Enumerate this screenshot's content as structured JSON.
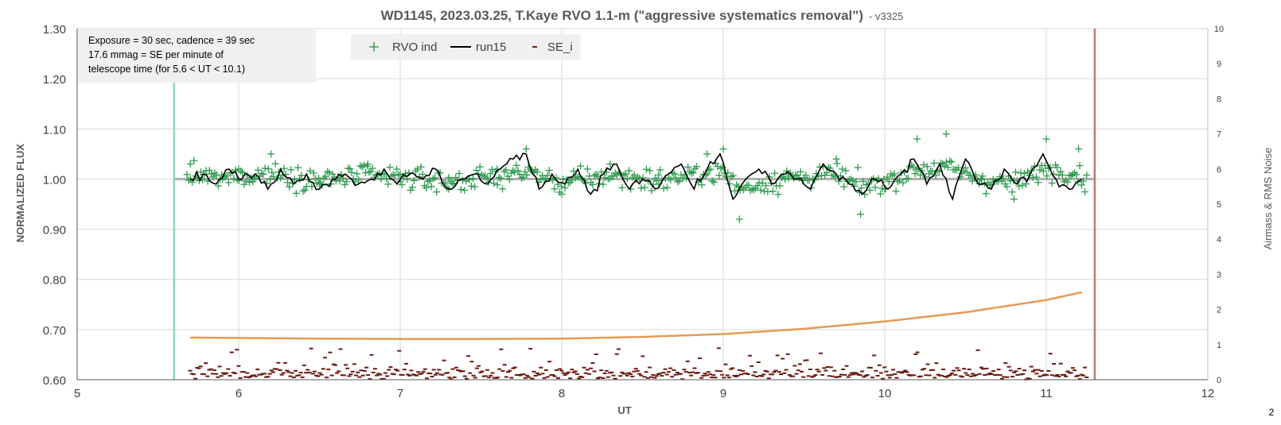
{
  "chart_data": {
    "type": "scatter",
    "title": "WD1145, 2023.03.25, T.Kaye RVO 1.1-m (\"aggressive systematics removal\")",
    "title_suffix": "- v3325",
    "xlabel": "UT",
    "ylabel": "NORMALIZED FLUX",
    "y2label": "Airmass & RMS Noise",
    "xlim": [
      5,
      12
    ],
    "ylim": [
      0.6,
      1.3
    ],
    "y2lim": [
      0,
      10
    ],
    "x_ticks": [
      "5",
      "6",
      "7",
      "8",
      "9",
      "10",
      "11",
      "12"
    ],
    "y_ticks": [
      "0.60",
      "0.70",
      "0.80",
      "0.90",
      "1.00",
      "1.10",
      "1.20",
      "1.30"
    ],
    "y2_ticks": [
      "0",
      "1",
      "2",
      "3",
      "4",
      "5",
      "6",
      "7",
      "8",
      "9",
      "10"
    ],
    "grid": true,
    "corner_mark": "2",
    "info_box": {
      "lines": [
        "Exposure = 30 sec, cadence = 39 sec",
        "17.6 mmag = SE per minute of",
        "telescope time  (for 5.6 < UT < 10.1)"
      ]
    },
    "legend": {
      "position": "top-left",
      "entries": [
        {
          "label": "RVO ind",
          "marker": "plus",
          "color": "#2e9b4e"
        },
        {
          "label": "run15",
          "marker": "line",
          "color": "#000000"
        },
        {
          "label": "SE_i",
          "marker": "dash",
          "color": "#6b1a10"
        }
      ]
    },
    "vertical_lines": [
      {
        "x": 5.6,
        "color": "#8fd4c0"
      },
      {
        "x": 11.3,
        "color": "#c07a7a"
      }
    ],
    "reference_line": {
      "y": 1.0,
      "color": "#b0b0b0"
    },
    "series": [
      {
        "name": "RVO ind",
        "style": "plus",
        "color": "#2e9b4e",
        "x_range": [
          5.68,
          11.25
        ],
        "n_points": 520,
        "baseline": 1.0,
        "scatter_sd": 0.018,
        "x_sample": [
          5.7,
          5.9,
          6.0,
          6.2,
          6.5,
          6.8,
          7.0,
          7.3,
          7.6,
          7.78,
          8.0,
          8.3,
          8.6,
          8.9,
          9.0,
          9.1,
          9.4,
          9.7,
          9.85,
          10.0,
          10.2,
          10.38,
          10.6,
          10.8,
          11.0,
          11.2
        ],
        "y_sample": [
          1.03,
          1.0,
          1.02,
          1.05,
          0.99,
          1.03,
          1.01,
          0.98,
          1.02,
          1.06,
          0.97,
          1.03,
          0.99,
          1.05,
          1.06,
          0.92,
          1.01,
          1.04,
          0.93,
          0.98,
          1.08,
          1.09,
          1.0,
          0.96,
          1.08,
          1.06
        ]
      },
      {
        "name": "run15",
        "style": "line",
        "color": "#000000",
        "x": [
          5.7,
          5.78,
          5.86,
          5.94,
          6.02,
          6.1,
          6.18,
          6.26,
          6.34,
          6.42,
          6.5,
          6.58,
          6.66,
          6.74,
          6.82,
          6.9,
          6.98,
          7.06,
          7.14,
          7.22,
          7.3,
          7.38,
          7.46,
          7.54,
          7.62,
          7.7,
          7.78,
          7.86,
          7.94,
          8.02,
          8.1,
          8.18,
          8.26,
          8.34,
          8.42,
          8.5,
          8.58,
          8.66,
          8.74,
          8.82,
          8.9,
          8.98,
          9.06,
          9.14,
          9.22,
          9.3,
          9.38,
          9.46,
          9.54,
          9.62,
          9.7,
          9.78,
          9.86,
          9.94,
          10.02,
          10.1,
          10.18,
          10.26,
          10.34,
          10.42,
          10.5,
          10.58,
          10.66,
          10.74,
          10.82,
          10.9,
          10.98,
          11.06,
          11.14,
          11.22
        ],
        "y": [
          1.0,
          1.01,
          0.99,
          1.02,
          1.0,
          1.01,
          0.98,
          1.02,
          0.99,
          1.01,
          0.98,
          1.0,
          1.01,
          0.99,
          1.0,
          1.02,
          0.99,
          1.01,
          1.0,
          1.02,
          0.98,
          1.0,
          1.01,
          0.99,
          1.02,
          1.04,
          1.05,
          0.98,
          1.01,
          0.99,
          1.02,
          0.97,
          1.01,
          1.03,
          0.98,
          1.0,
          0.98,
          1.01,
          1.03,
          0.98,
          1.02,
          1.05,
          0.96,
          1.0,
          1.02,
          0.99,
          1.01,
          1.0,
          0.98,
          1.03,
          1.01,
          0.99,
          0.97,
          1.0,
          0.98,
          1.01,
          1.04,
          0.99,
          1.03,
          0.96,
          1.04,
          0.99,
          0.98,
          1.02,
          0.99,
          1.01,
          1.05,
          1.0,
          0.98,
          1.0
        ]
      },
      {
        "name": "Airmass",
        "style": "line",
        "axis": "right",
        "color": "#e59a55",
        "x": [
          5.7,
          6.0,
          6.5,
          7.0,
          7.5,
          8.0,
          8.5,
          9.0,
          9.5,
          10.0,
          10.5,
          11.0,
          11.22
        ],
        "y": [
          1.2,
          1.19,
          1.17,
          1.16,
          1.16,
          1.17,
          1.22,
          1.3,
          1.45,
          1.66,
          1.92,
          2.27,
          2.49
        ]
      },
      {
        "name": "SE_i",
        "style": "dash",
        "axis": "right",
        "color": "#6b1a10",
        "x_range": [
          5.7,
          11.25
        ],
        "n_points": 520,
        "typical_y": [
          0,
          0.9
        ],
        "max_y": 1.0
      }
    ]
  }
}
